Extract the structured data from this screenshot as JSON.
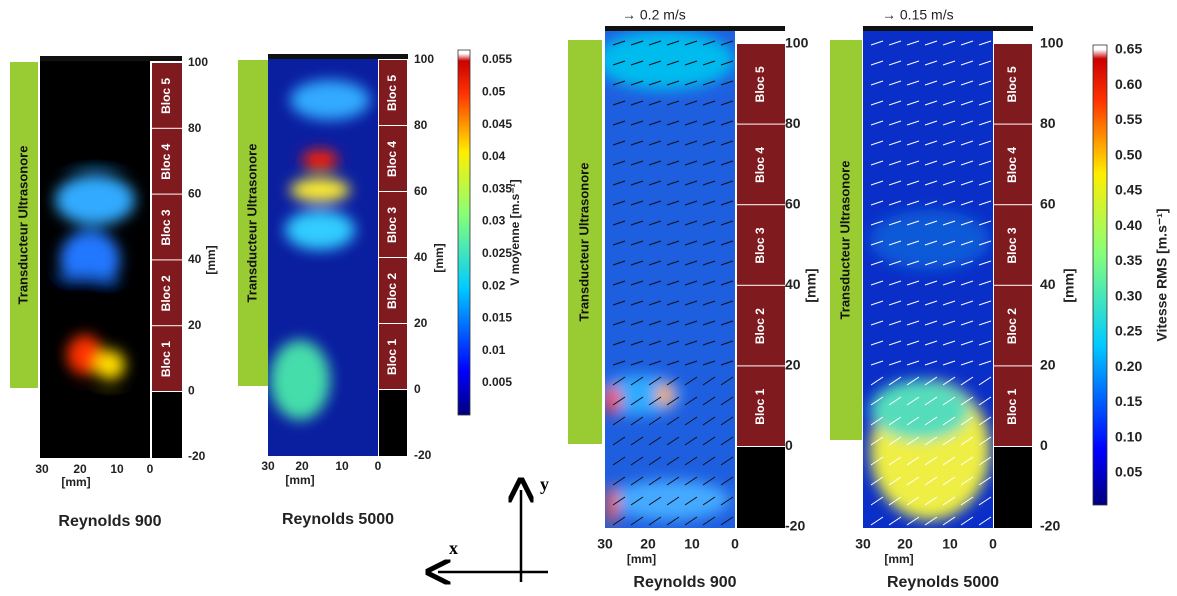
{
  "panels": [
    {
      "title": "Reynolds 900",
      "transducer": "Transducteur Ultrasonore",
      "blocs": [
        "Bloc 5",
        "Bloc 4",
        "Bloc 3",
        "Bloc 2",
        "Bloc 1"
      ],
      "y_ticks": [
        "100",
        "80",
        "60",
        "40",
        "20",
        "0",
        "-20"
      ],
      "y_label": "[mm]",
      "x_ticks": [
        "30",
        "20",
        "10",
        "0"
      ],
      "x_label": "[mm]"
    },
    {
      "title": "Reynolds 5000",
      "transducer": "Transducteur Ultrasonore",
      "blocs": [
        "Bloc 5",
        "Bloc 4",
        "Bloc 3",
        "Bloc 2",
        "Bloc 1"
      ],
      "y_ticks": [
        "100",
        "80",
        "60",
        "40",
        "20",
        "0",
        "-20"
      ],
      "y_label": "[mm]",
      "x_ticks": [
        "30",
        "20",
        "10",
        "0"
      ],
      "x_label": "[mm]"
    },
    {
      "title": "Reynolds 900",
      "scale": "→ 0.2 m/s",
      "transducer": "Transducteur Ultrasonore",
      "blocs": [
        "Bloc 5",
        "Bloc 4",
        "Bloc 3",
        "Bloc 2",
        "Bloc 1"
      ],
      "y_ticks": [
        "100",
        "80",
        "60",
        "40",
        "20",
        "0",
        "-20"
      ],
      "y_label": "[mm]",
      "x_ticks": [
        "30",
        "20",
        "10",
        "0"
      ],
      "x_label": "[mm]"
    },
    {
      "title": "Reynolds 5000",
      "scale": "→ 0.15 m/s",
      "transducer": "Transducteur Ultrasonore",
      "blocs": [
        "Bloc 5",
        "Bloc 4",
        "Bloc 3",
        "Bloc 2",
        "Bloc 1"
      ],
      "y_ticks": [
        "100",
        "80",
        "60",
        "40",
        "20",
        "0",
        "-20"
      ],
      "y_label": "[mm]",
      "x_ticks": [
        "30",
        "20",
        "10",
        "0"
      ],
      "x_label": "[mm]"
    }
  ],
  "colorbars": [
    {
      "label": "V moyenne [m.s⁻¹]",
      "ticks": [
        "0.055",
        "0.05",
        "0.045",
        "0.04",
        "0.035",
        "0.03",
        "0.025",
        "0.02",
        "0.015",
        "0.01",
        "0.005"
      ]
    },
    {
      "label": "Vitesse RMS [m.s⁻¹]",
      "ticks": [
        "0.65",
        "0.60",
        "0.55",
        "0.50",
        "0.45",
        "0.40",
        "0.35",
        "0.30",
        "0.25",
        "0.20",
        "0.15",
        "0.10",
        "0.05"
      ]
    }
  ],
  "axes": {
    "x": "x",
    "y": "y"
  }
}
